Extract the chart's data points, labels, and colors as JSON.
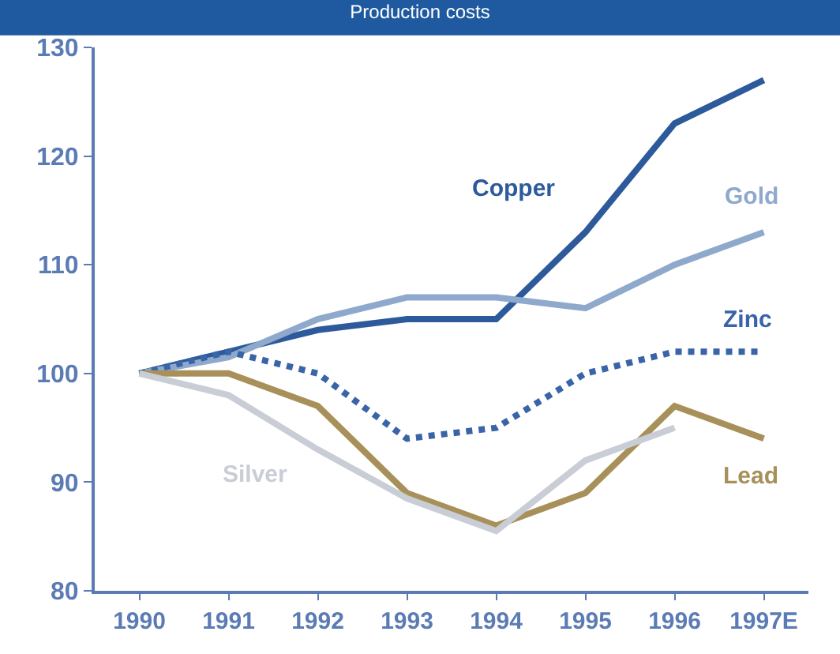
{
  "chart_data": {
    "type": "line",
    "title": "Production costs",
    "categories": [
      "1990",
      "1991",
      "1992",
      "1993",
      "1994",
      "1995",
      "1996",
      "1997E"
    ],
    "series": [
      {
        "name": "Copper",
        "color": "#2d5a9b",
        "line_style": "solid",
        "values": [
          100,
          102,
          104,
          105,
          105,
          113,
          123,
          127
        ]
      },
      {
        "name": "Gold",
        "color": "#8fa9cc",
        "line_style": "solid",
        "values": [
          100,
          101.5,
          105,
          107,
          107,
          106,
          110,
          113
        ]
      },
      {
        "name": "Zinc",
        "color": "#3a64a8",
        "line_style": "dotted",
        "values": [
          100,
          102,
          100,
          94,
          95,
          100,
          102,
          102
        ]
      },
      {
        "name": "Lead",
        "color": "#a8905a",
        "line_style": "solid",
        "values": [
          100,
          100,
          97,
          89,
          86,
          89,
          97,
          94
        ]
      },
      {
        "name": "Silver",
        "color": "#c8cdd6",
        "line_style": "solid",
        "values": [
          100,
          98,
          93,
          88.5,
          85.5,
          92,
          95,
          null
        ]
      }
    ],
    "ylim": [
      80,
      130
    ],
    "yticks": [
      80,
      90,
      100,
      110,
      120,
      130
    ],
    "legend": false,
    "marker": "none"
  }
}
